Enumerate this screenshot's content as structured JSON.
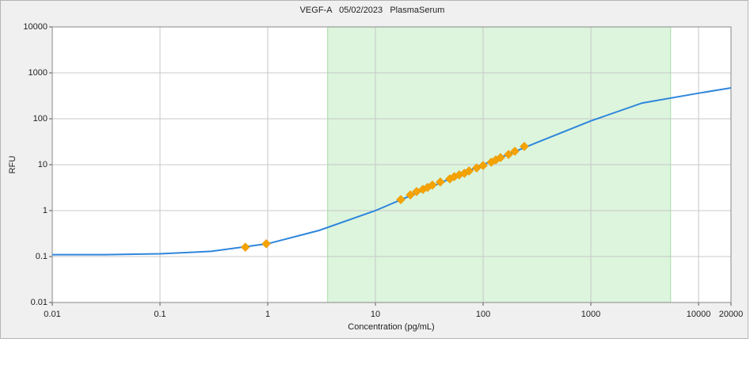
{
  "chart_data": {
    "type": "line",
    "title": "VEGF-A   05/02/2023   PlasmaSerum",
    "x_label": "Concentration (pg/mL)",
    "y_label": "RFU",
    "x_scale": "log",
    "y_scale": "log",
    "xlim": [
      0.01,
      20000
    ],
    "ylim": [
      0.01,
      10000
    ],
    "xticks": [
      0.01,
      0.1,
      1,
      10,
      100,
      1000,
      10000,
      20000
    ],
    "yticks": [
      0.01,
      0.1,
      1,
      10,
      100,
      1000,
      10000
    ],
    "grid": true,
    "highlight_xrange": [
      3.6,
      5500
    ],
    "highlight_color": "#dcf5dc",
    "curve": {
      "color": "#2f86dc",
      "x": [
        0.01,
        0.03,
        0.1,
        0.3,
        1,
        3,
        10,
        30,
        100,
        300,
        1000,
        3000,
        10000,
        20000
      ],
      "y": [
        0.11,
        0.11,
        0.115,
        0.13,
        0.19,
        0.37,
        1.0,
        3.0,
        10,
        29,
        90,
        220,
        360,
        470
      ]
    },
    "points": {
      "color": "#f5a300",
      "x": [
        0.62,
        0.97,
        17.2,
        21.1,
        24.1,
        27.6,
        30.5,
        33.8,
        40,
        49,
        54,
        60,
        67,
        74,
        87,
        100,
        119,
        131,
        145,
        172,
        197,
        241
      ],
      "y": [
        0.16,
        0.19,
        1.74,
        2.2,
        2.6,
        2.9,
        3.2,
        3.6,
        4.2,
        4.9,
        5.5,
        6.0,
        6.5,
        7.3,
        8.5,
        9.6,
        11.3,
        12.7,
        14.3,
        16.7,
        19.6,
        25
      ]
    }
  }
}
